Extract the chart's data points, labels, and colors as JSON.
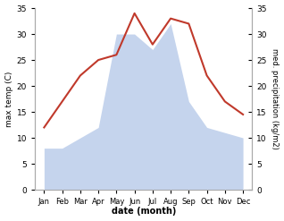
{
  "months": [
    "Jan",
    "Feb",
    "Mar",
    "Apr",
    "May",
    "Jun",
    "Jul",
    "Aug",
    "Sep",
    "Oct",
    "Nov",
    "Dec"
  ],
  "x_positions": [
    0,
    1,
    2,
    3,
    4,
    5,
    6,
    7,
    8,
    9,
    10,
    11
  ],
  "temperature": [
    12,
    17,
    22,
    25,
    26,
    34,
    28,
    33,
    32,
    22,
    17,
    14.5
  ],
  "precipitation": [
    8,
    8,
    10,
    12,
    30,
    30,
    27,
    32,
    17,
    12,
    11,
    10
  ],
  "temp_color": "#c0392b",
  "precip_fill_color": "#c5d4ed",
  "ylim": [
    0,
    35
  ],
  "yticks": [
    0,
    5,
    10,
    15,
    20,
    25,
    30,
    35
  ],
  "xlabel": "date (month)",
  "ylabel_left": "max temp (C)",
  "ylabel_right": "med. precipitation (kg/m2)",
  "background_color": "#ffffff",
  "spine_color": "#aaaaaa"
}
